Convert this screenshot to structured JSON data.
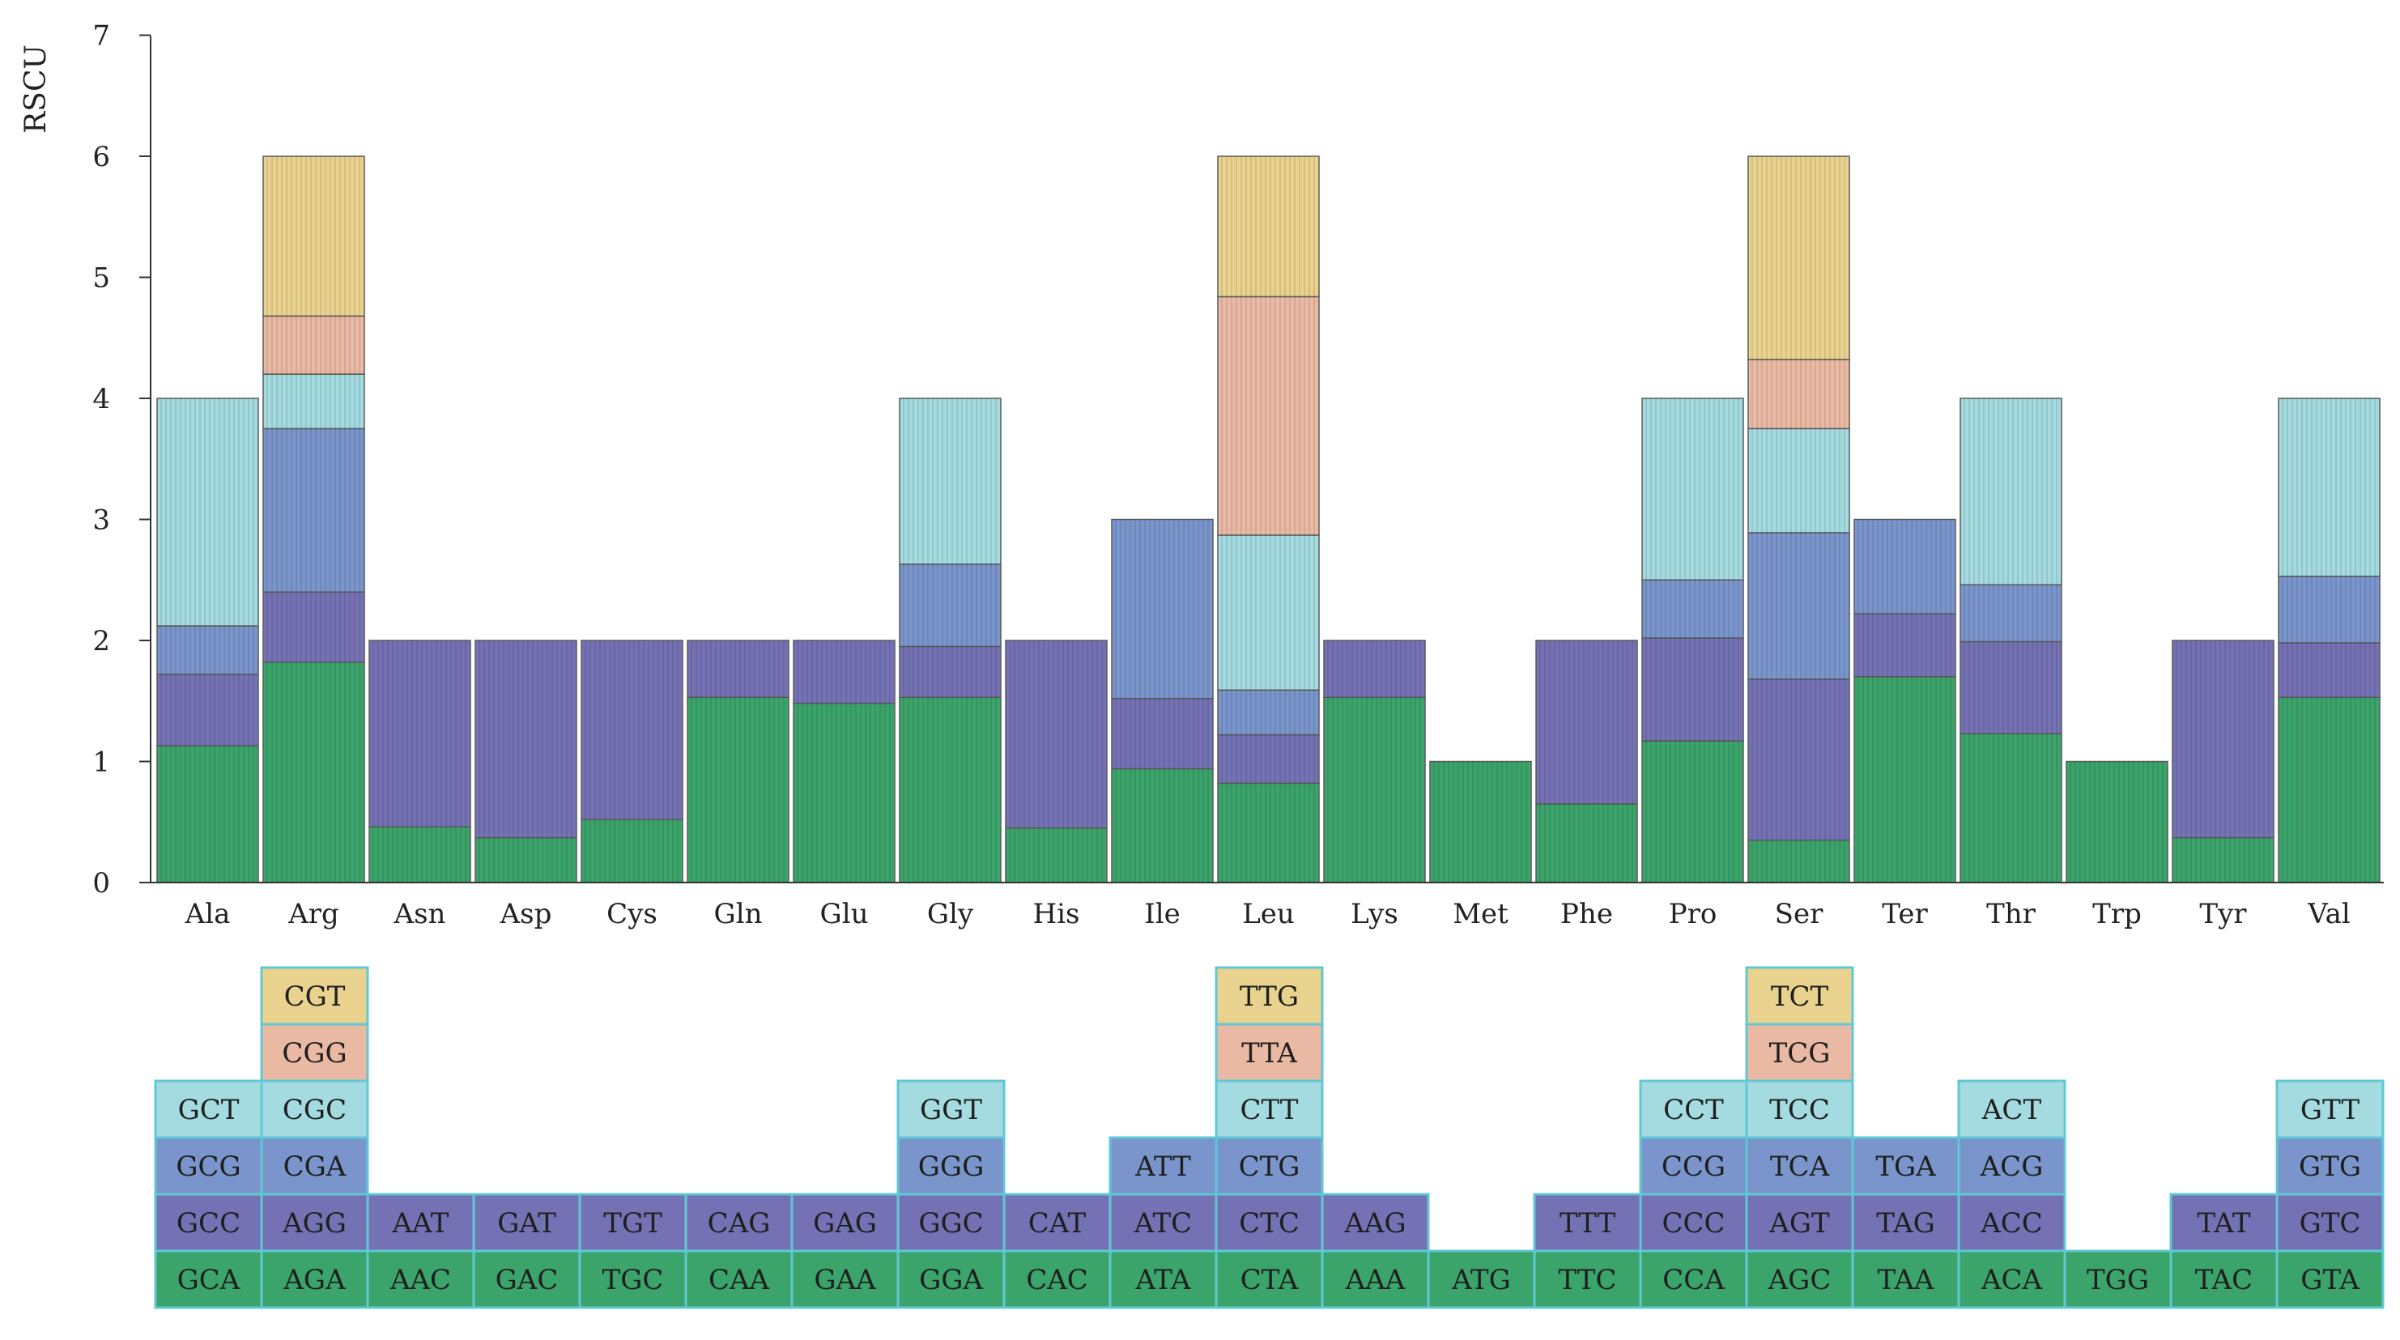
{
  "chart_data": {
    "type": "bar",
    "stacked": true,
    "ylabel": "RSCU",
    "ylim": [
      0,
      7
    ],
    "yticks": [
      "0",
      "1",
      "2",
      "3",
      "4",
      "5",
      "6",
      "7"
    ],
    "grid": false,
    "legend": "codon blocks below x-axis",
    "colors": [
      "#3ba46a",
      "#7472b4",
      "#7a95cc",
      "#a3dbe0",
      "#e9b9a4",
      "#e9d28d"
    ],
    "categories": [
      "Ala",
      "Arg",
      "Asn",
      "Asp",
      "Cys",
      "Gln",
      "Glu",
      "Gly",
      "His",
      "Ile",
      "Leu",
      "Lys",
      "Met",
      "Phe",
      "Pro",
      "Ser",
      "Ter",
      "Thr",
      "Trp",
      "Tyr",
      "Val"
    ],
    "groups": [
      {
        "aa": "Ala",
        "codons": [
          "GCA",
          "GCC",
          "GCG",
          "GCT"
        ],
        "values": [
          1.13,
          0.59,
          0.4,
          1.88
        ]
      },
      {
        "aa": "Arg",
        "codons": [
          "AGA",
          "AGG",
          "CGA",
          "CGC",
          "CGG",
          "CGT"
        ],
        "values": [
          1.82,
          0.58,
          1.35,
          0.45,
          0.48,
          1.32
        ]
      },
      {
        "aa": "Asn",
        "codons": [
          "AAC",
          "AAT"
        ],
        "values": [
          0.46,
          1.54
        ]
      },
      {
        "aa": "Asp",
        "codons": [
          "GAC",
          "GAT"
        ],
        "values": [
          0.37,
          1.63
        ]
      },
      {
        "aa": "Cys",
        "codons": [
          "TGC",
          "TGT"
        ],
        "values": [
          0.52,
          1.48
        ]
      },
      {
        "aa": "Gln",
        "codons": [
          "CAA",
          "CAG"
        ],
        "values": [
          1.53,
          0.47
        ]
      },
      {
        "aa": "Glu",
        "codons": [
          "GAA",
          "GAG"
        ],
        "values": [
          1.48,
          0.52
        ]
      },
      {
        "aa": "Gly",
        "codons": [
          "GGA",
          "GGC",
          "GGG",
          "GGT"
        ],
        "values": [
          1.53,
          0.42,
          0.68,
          1.37
        ]
      },
      {
        "aa": "His",
        "codons": [
          "CAC",
          "CAT"
        ],
        "values": [
          0.45,
          1.55
        ]
      },
      {
        "aa": "Ile",
        "codons": [
          "ATA",
          "ATC",
          "ATT"
        ],
        "values": [
          0.94,
          0.58,
          1.48
        ]
      },
      {
        "aa": "Leu",
        "codons": [
          "CTA",
          "CTC",
          "CTG",
          "CTT",
          "TTA",
          "TTG"
        ],
        "values": [
          0.82,
          0.4,
          0.37,
          1.28,
          1.97,
          1.16
        ]
      },
      {
        "aa": "Lys",
        "codons": [
          "AAA",
          "AAG"
        ],
        "values": [
          1.53,
          0.47
        ]
      },
      {
        "aa": "Met",
        "codons": [
          "ATG"
        ],
        "values": [
          1.0
        ]
      },
      {
        "aa": "Phe",
        "codons": [
          "TTC",
          "TTT"
        ],
        "values": [
          0.65,
          1.35
        ]
      },
      {
        "aa": "Pro",
        "codons": [
          "CCA",
          "CCC",
          "CCG",
          "CCT"
        ],
        "values": [
          1.17,
          0.85,
          0.48,
          1.5
        ]
      },
      {
        "aa": "Ser",
        "codons": [
          "AGC",
          "AGT",
          "TCA",
          "TCC",
          "TCG",
          "TCT"
        ],
        "values": [
          0.35,
          1.33,
          1.21,
          0.86,
          0.57,
          1.68
        ]
      },
      {
        "aa": "Ter",
        "codons": [
          "TAA",
          "TAG",
          "TGA"
        ],
        "values": [
          1.7,
          0.52,
          0.78
        ]
      },
      {
        "aa": "Thr",
        "codons": [
          "ACA",
          "ACC",
          "ACG",
          "ACT"
        ],
        "values": [
          1.23,
          0.76,
          0.47,
          1.54
        ]
      },
      {
        "aa": "Trp",
        "codons": [
          "TGG"
        ],
        "values": [
          1.0
        ]
      },
      {
        "aa": "Tyr",
        "codons": [
          "TAC",
          "TAT"
        ],
        "values": [
          0.37,
          1.63
        ]
      },
      {
        "aa": "Val",
        "codons": [
          "GTA",
          "GTC",
          "GTG",
          "GTT"
        ],
        "values": [
          1.53,
          0.45,
          0.55,
          1.47
        ]
      }
    ]
  }
}
